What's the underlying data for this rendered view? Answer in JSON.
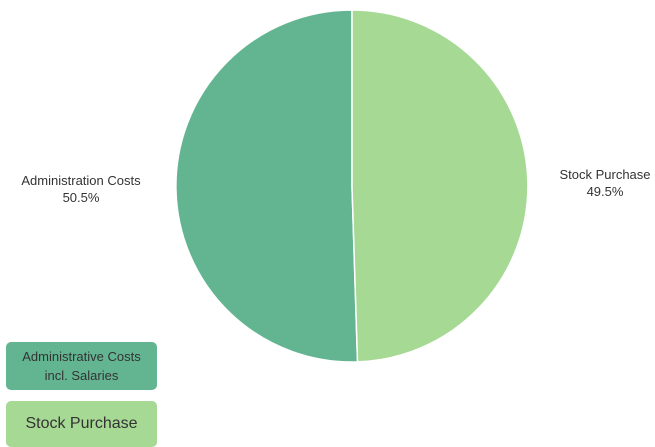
{
  "chart_data": {
    "type": "pie",
    "title": "",
    "slices": [
      {
        "label": "Administration Costs",
        "percent_label": "50.5%",
        "value": 50.5,
        "color": "#63b592"
      },
      {
        "label": "Stock Purchase",
        "percent_label": "49.5%",
        "value": 49.5,
        "color": "#a6d994"
      }
    ],
    "legend": {
      "placement": "bottom-left",
      "entries": [
        {
          "label": "Administrative Costs incl. Salaries",
          "color": "#63b592"
        },
        {
          "label": "Stock Purchase",
          "color": "#a6d994"
        }
      ]
    }
  }
}
